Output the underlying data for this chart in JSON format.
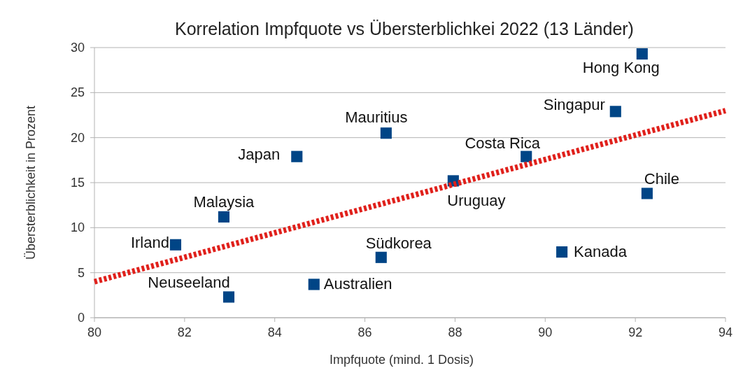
{
  "chart_data": {
    "type": "scatter",
    "title": "Korrelation Impfquote vs Übersterblichkei 2022 (13 Länder)",
    "xlabel": "Impfquote (mind. 1 Dosis)",
    "ylabel": "Übersterblichkeit in Prozent",
    "xlim": [
      80,
      94
    ],
    "xticks": [
      80,
      82,
      84,
      86,
      88,
      90,
      92,
      94
    ],
    "ylim": [
      0,
      30
    ],
    "yticks": [
      0,
      5,
      10,
      15,
      20,
      25,
      30
    ],
    "grid": "y",
    "marker": "square",
    "series": [
      {
        "color": "#004586",
        "x": [
          92.15,
          91.56,
          86.47,
          84.49,
          89.58,
          87.96,
          92.26,
          82.87,
          81.8,
          86.36,
          90.37,
          84.87,
          82.98
        ],
        "values": [
          29.3,
          22.9,
          20.5,
          17.9,
          17.9,
          15.2,
          13.8,
          11.2,
          8.1,
          6.7,
          7.3,
          3.7,
          2.3
        ]
      },
      {
        "type": "line",
        "color": "#e0201b",
        "line_style": "dotted",
        "marker": "none",
        "x": [
          80,
          94
        ],
        "values": [
          4.0,
          23.0
        ]
      }
    ],
    "annotations": [
      {
        "text": "Hong Kong",
        "x": 92.15,
        "y": 29.3
      },
      {
        "text": "Singapur",
        "x": 91.56,
        "y": 22.9
      },
      {
        "text": "Mauritius",
        "x": 86.47,
        "y": 20.5
      },
      {
        "text": "Japan",
        "x": 84.49,
        "y": 17.9
      },
      {
        "text": "Costa Rica",
        "x": 89.58,
        "y": 17.9
      },
      {
        "text": "Uruguay",
        "x": 87.96,
        "y": 15.2
      },
      {
        "text": "Chile",
        "x": 92.26,
        "y": 13.8
      },
      {
        "text": "Malaysia",
        "x": 82.87,
        "y": 11.2
      },
      {
        "text": "Irland",
        "x": 81.8,
        "y": 8.1
      },
      {
        "text": "Südkorea",
        "x": 86.36,
        "y": 6.7
      },
      {
        "text": "Kanada",
        "x": 90.37,
        "y": 7.3
      },
      {
        "text": "Australien",
        "x": 84.87,
        "y": 3.7
      },
      {
        "text": "Neuseeland",
        "x": 82.98,
        "y": 2.3
      }
    ]
  }
}
